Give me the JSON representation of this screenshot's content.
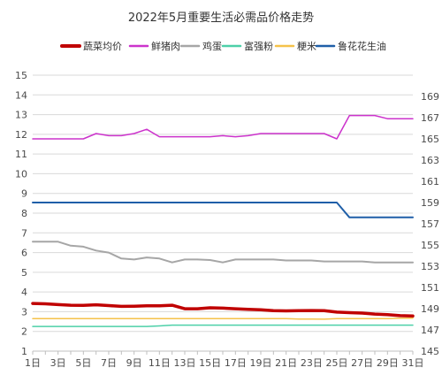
{
  "chart_data": {
    "type": "line",
    "title": "2022年5月重要生活必需品价格走势",
    "x_tick_labels": [
      "1日",
      "3日",
      "5日",
      "7日",
      "9日",
      "11日",
      "13日",
      "15日",
      "17日",
      "19日",
      "21日",
      "23日",
      "25日",
      "27日",
      "29日",
      "31日"
    ],
    "x": [
      1,
      2,
      3,
      4,
      5,
      6,
      7,
      8,
      9,
      10,
      11,
      12,
      13,
      14,
      15,
      16,
      17,
      18,
      19,
      20,
      21,
      22,
      23,
      24,
      25,
      26,
      27,
      28,
      29,
      30,
      31
    ],
    "y_left": {
      "lim": [
        1,
        15
      ],
      "ticks": [
        1,
        2,
        3,
        4,
        5,
        6,
        7,
        8,
        9,
        10,
        11,
        12,
        13,
        14,
        15
      ]
    },
    "y_right": {
      "lim": [
        145,
        171
      ],
      "ticks": [
        145,
        147,
        149,
        151,
        153,
        155,
        157,
        159,
        161,
        163,
        165,
        167,
        169
      ]
    },
    "grid": true,
    "legend_position": "top",
    "series": [
      {
        "name": "蔬菜均价",
        "color": "#c00000",
        "axis": "left",
        "width": 3.5,
        "values": [
          3.42,
          3.4,
          3.36,
          3.33,
          3.32,
          3.35,
          3.31,
          3.27,
          3.28,
          3.3,
          3.3,
          3.33,
          3.15,
          3.15,
          3.2,
          3.18,
          3.15,
          3.12,
          3.1,
          3.05,
          3.04,
          3.05,
          3.06,
          3.05,
          2.98,
          2.95,
          2.93,
          2.88,
          2.85,
          2.8,
          2.78
        ]
      },
      {
        "name": "鲜猪肉",
        "color": "#cc33cc",
        "axis": "right",
        "width": 1.5,
        "values": [
          165,
          165,
          165,
          165,
          165,
          165.5,
          165.3,
          165.3,
          165.5,
          165.9,
          165.2,
          165.2,
          165.2,
          165.2,
          165.2,
          165.3,
          165.2,
          165.3,
          165.5,
          165.5,
          165.5,
          165.5,
          165.5,
          165.5,
          165.0,
          167.2,
          167.2,
          167.2,
          166.9,
          166.9,
          166.9
        ]
      },
      {
        "name": "鸡蛋",
        "color": "#a6a6a6",
        "axis": "left",
        "width": 2,
        "values": [
          6.55,
          6.55,
          6.55,
          6.35,
          6.3,
          6.1,
          6.0,
          5.7,
          5.65,
          5.75,
          5.7,
          5.5,
          5.65,
          5.65,
          5.62,
          5.5,
          5.65,
          5.65,
          5.65,
          5.65,
          5.6,
          5.6,
          5.6,
          5.55,
          5.55,
          5.55,
          5.55,
          5.5,
          5.5,
          5.5,
          5.5
        ]
      },
      {
        "name": "富强粉",
        "color": "#4dd0a8",
        "axis": "left",
        "width": 1.5,
        "values": [
          2.25,
          2.25,
          2.25,
          2.25,
          2.25,
          2.25,
          2.25,
          2.25,
          2.25,
          2.25,
          2.28,
          2.32,
          2.32,
          2.32,
          2.32,
          2.32,
          2.32,
          2.32,
          2.32,
          2.32,
          2.32,
          2.32,
          2.32,
          2.32,
          2.32,
          2.32,
          2.32,
          2.32,
          2.32,
          2.32,
          2.32
        ]
      },
      {
        "name": "粳米",
        "color": "#f5c24a",
        "axis": "left",
        "width": 1.5,
        "values": [
          2.65,
          2.65,
          2.65,
          2.65,
          2.65,
          2.65,
          2.65,
          2.65,
          2.65,
          2.65,
          2.65,
          2.65,
          2.65,
          2.65,
          2.65,
          2.65,
          2.65,
          2.65,
          2.65,
          2.65,
          2.65,
          2.63,
          2.63,
          2.62,
          2.65,
          2.65,
          2.65,
          2.65,
          2.65,
          2.67,
          2.67
        ]
      },
      {
        "name": "鲁花花生油",
        "color": "#1f5fa8",
        "axis": "right",
        "width": 2,
        "values": [
          159,
          159,
          159,
          159,
          159,
          159,
          159,
          159,
          159,
          159,
          159,
          159,
          159,
          159,
          159,
          159,
          159,
          159,
          159,
          159,
          159,
          159,
          159,
          159,
          159,
          157.6,
          157.6,
          157.6,
          157.6,
          157.6,
          157.6
        ]
      }
    ]
  }
}
